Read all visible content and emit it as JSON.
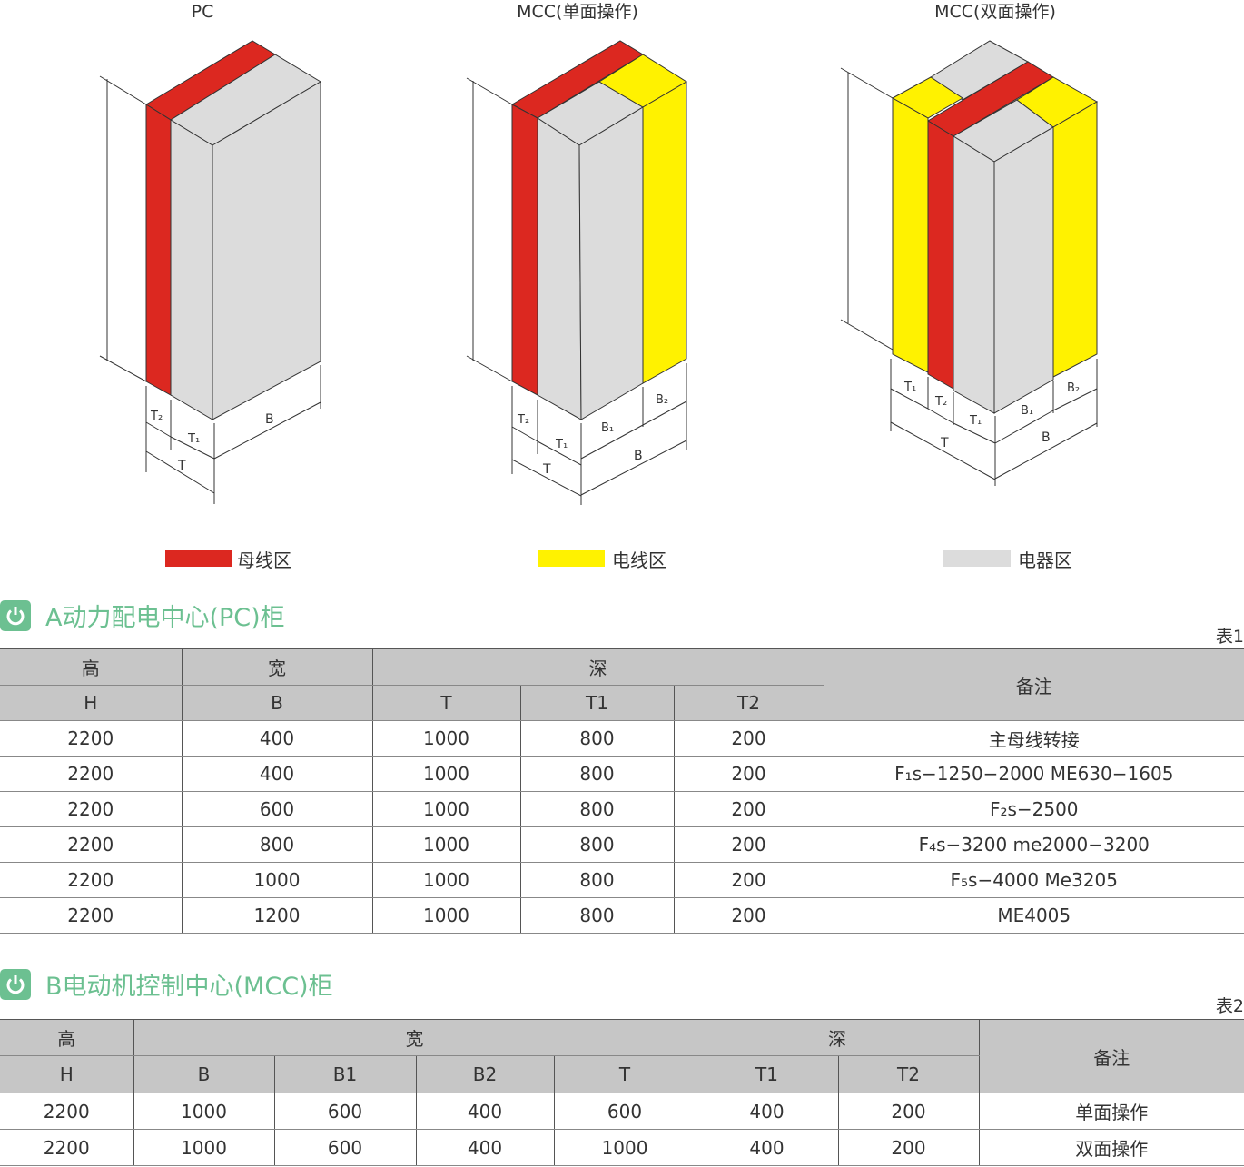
{
  "diagram": {
    "titles": [
      "PC",
      "MCC(单面操作)",
      "MCC(双面操作)"
    ],
    "pc_labels": {
      "t2": "T₂",
      "t1": "T₁",
      "t": "T",
      "b": "B"
    },
    "mcc1_labels": {
      "t2": "T₂",
      "t1": "T₁",
      "t": "T",
      "b1": "B₁",
      "b2": "B₂",
      "b": "B"
    },
    "mcc2_labels": {
      "t1": "T₁",
      "t2": "T₂",
      "t1b": "T₁",
      "t": "T",
      "b1": "B₁",
      "b2": "B₂",
      "b": "B"
    },
    "colors": {
      "busbar": "#dc2820",
      "cable": "#fff200",
      "apparatus": "#dcdcdc"
    },
    "legend": [
      {
        "label": "母线区",
        "color": "#dc2820"
      },
      {
        "label": "电线区",
        "color": "#fff200"
      },
      {
        "label": "电器区",
        "color": "#dcdcdc"
      }
    ]
  },
  "section_a": {
    "icon": "power-icon",
    "title": "A动力配电中心(PC)柜",
    "table_no": "表1",
    "header1": [
      "高",
      "宽",
      "深",
      "备注"
    ],
    "header2": [
      "H",
      "B",
      "T",
      "T1",
      "T2"
    ],
    "rows": [
      [
        "2200",
        "400",
        "1000",
        "800",
        "200",
        "主母线转接"
      ],
      [
        "2200",
        "400",
        "1000",
        "800",
        "200",
        "F₁s−1250−2000 ME630−1605"
      ],
      [
        "2200",
        "600",
        "1000",
        "800",
        "200",
        "F₂s−2500"
      ],
      [
        "2200",
        "800",
        "1000",
        "800",
        "200",
        "F₄s−3200 me2000−3200"
      ],
      [
        "2200",
        "1000",
        "1000",
        "800",
        "200",
        "F₅s−4000  Me3205"
      ],
      [
        "2200",
        "1200",
        "1000",
        "800",
        "200",
        "ME4005"
      ]
    ]
  },
  "section_b": {
    "icon": "power-icon",
    "title": "B电动机控制中心(MCC)柜",
    "table_no": "表2",
    "header1": [
      "高",
      "宽",
      "深",
      "备注"
    ],
    "header2": [
      "H",
      "B",
      "B1",
      "B2",
      "T",
      "T1",
      "T2"
    ],
    "rows": [
      [
        "2200",
        "1000",
        "600",
        "400",
        "600",
        "400",
        "200",
        "单面操作"
      ],
      [
        "2200",
        "1000",
        "600",
        "400",
        "1000",
        "400",
        "200",
        "双面操作"
      ]
    ]
  }
}
